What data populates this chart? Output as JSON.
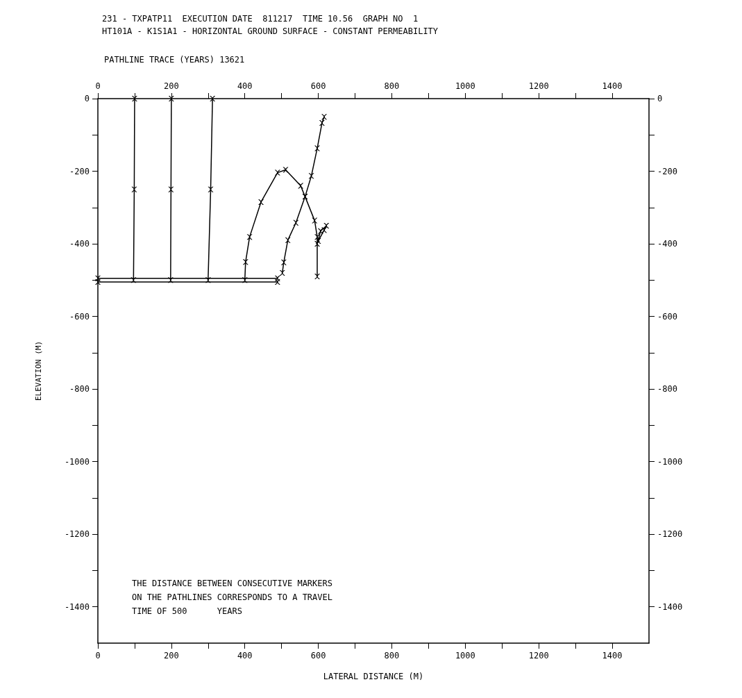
{
  "chart_data": {
    "type": "line",
    "title": "231 - TXPATP11  EXECUTION DATE  811217  TIME 10.56  GRAPH NO  1",
    "subtitle": "HT101A - K1S1A1 - HORIZONTAL GROUND SURFACE - CONSTANT PERMEABILITY",
    "xlabel": "LATERAL DISTANCE (M)",
    "ylabel": "ELEVATION (M)",
    "annotations": [
      "PATHLINE TRACE (YEARS) 13621",
      "THE DISTANCE BETWEEN CONSECUTIVE MARKERS\nON THE PATHLINES CORRESPONDS TO A TRAVEL\nTIME OF 500      YEARS"
    ],
    "series": [
      {
        "color": "#000000",
        "x": [
          100,
          99,
          97
        ],
        "values": [
          0,
          -250,
          -500
        ]
      },
      {
        "color": "#000000",
        "x": [
          200,
          199,
          198
        ],
        "values": [
          0,
          -250,
          -500
        ]
      },
      {
        "color": "#000000",
        "x": [
          312,
          307,
          300
        ],
        "values": [
          0,
          -250,
          -500
        ]
      },
      {
        "color": "#000000",
        "x": [
          400,
          402,
          413,
          444,
          489,
          511,
          552,
          564,
          590,
          597,
          597
        ],
        "values": [
          -500,
          -450,
          -381,
          -285,
          -204,
          -196,
          -240,
          -270,
          -336,
          -381,
          -490
        ]
      },
      {
        "color": "#000000",
        "x": [
          597,
          606,
          622,
          616,
          600
        ],
        "values": [
          -400,
          -365,
          -350,
          -362,
          -392
        ]
      },
      {
        "color": "#000000",
        "x": [
          0,
          489
        ],
        "values": [
          -495,
          -495
        ]
      },
      {
        "color": "#000000",
        "x": [
          0,
          489
        ],
        "values": [
          -505,
          -505
        ]
      },
      {
        "color": "#000000",
        "x": [
          502,
          506,
          517,
          539,
          564,
          581,
          597,
          610,
          616
        ],
        "values": [
          -480,
          -451,
          -390,
          -342,
          -270,
          -213,
          -137,
          -67,
          -50
        ]
      }
    ],
    "xlim": [
      0,
      1500
    ],
    "xticks": [
      0,
      {
        "value": 100,
        "label": null
      },
      200,
      {
        "value": 300,
        "label": null
      },
      400,
      {
        "value": 500,
        "label": null
      },
      600,
      {
        "value": 700,
        "label": null
      },
      800,
      {
        "value": 900,
        "label": null
      },
      1000,
      {
        "value": 1100,
        "label": null
      },
      1200,
      {
        "value": 1300,
        "label": null
      },
      1400
    ],
    "x2lim": [
      0,
      1500
    ],
    "x2ticks": [
      0,
      {
        "value": 100,
        "label": null
      },
      200,
      {
        "value": 300,
        "label": null
      },
      400,
      {
        "value": 500,
        "label": null
      },
      600,
      {
        "value": 700,
        "label": null
      },
      800,
      {
        "value": 900,
        "label": null
      },
      1000,
      {
        "value": 1100,
        "label": null
      },
      1200,
      {
        "value": 1300,
        "label": null
      },
      1400
    ],
    "ylim": [
      -1500,
      0
    ],
    "yticks": [
      0,
      {
        "value": -100,
        "label": null
      },
      -200,
      {
        "value": -300,
        "label": null
      },
      -400,
      {
        "value": -500,
        "label": null
      },
      -600,
      {
        "value": -700,
        "label": null
      },
      -800,
      {
        "value": -900,
        "label": null
      },
      -1000,
      {
        "value": -1100,
        "label": null
      },
      -1200,
      {
        "value": -1300,
        "label": null
      },
      -1400
    ],
    "y2lim": [
      -1500,
      0
    ],
    "y2ticks": [
      0,
      {
        "value": -100,
        "label": null
      },
      -200,
      {
        "value": -300,
        "label": null
      },
      -400,
      {
        "value": -500,
        "label": null
      },
      -600,
      {
        "value": -700,
        "label": null
      },
      -800,
      {
        "value": -900,
        "label": null
      },
      -1000,
      {
        "value": -1100,
        "label": null
      },
      -1200,
      {
        "value": -1300,
        "label": null
      },
      -1400
    ],
    "marker": "cross",
    "line_style": "solid",
    "grid": false
  }
}
